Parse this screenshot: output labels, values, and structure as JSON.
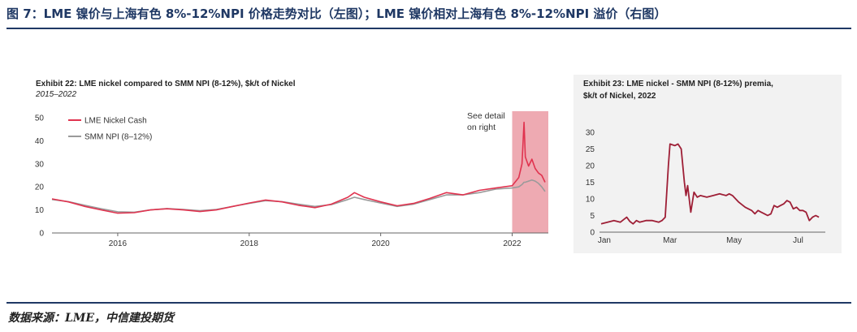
{
  "figure": {
    "title": "图 7：LME 镍价与上海有色 8%-12%NPI 价格走势对比（左图）；LME 镍价相对上海有色 8%-12%NPI 溢价（右图）",
    "source": "数据来源：LME，中信建投期货"
  },
  "colors": {
    "title_blue": "#1f3864",
    "lme_red": "#e0334f",
    "npi_gray": "#9a9a9a",
    "highlight": "#eeaab2",
    "premium_line": "#9e1f36",
    "panel_bg": "#f2f2f2"
  },
  "chart_data": [
    {
      "type": "line",
      "title": "Exhibit 22: LME nickel compared to SMM NPI (8-12%), $k/t of Nickel",
      "subtitle": "2015–2022",
      "xlabel": "",
      "ylabel": "",
      "xlim": [
        2015.0,
        2022.55
      ],
      "ylim": [
        0,
        50
      ],
      "x_ticks": [
        2016,
        2018,
        2020,
        2022
      ],
      "x_tick_labels": [
        "2016",
        "2018",
        "2020",
        "2022"
      ],
      "y_ticks": [
        0,
        10,
        20,
        30,
        40,
        50
      ],
      "y_tick_labels": [
        "0",
        "10",
        "20",
        "30",
        "40",
        "50"
      ],
      "legend": [
        "LME Nickel Cash",
        "SMM NPI (8–12%)"
      ],
      "legend_position": "top-left",
      "annotation": {
        "lines": [
          "See detail",
          "on right"
        ],
        "highlight_start": 2022.0,
        "highlight_end": 2022.55
      },
      "x": [
        2015.0,
        2015.25,
        2015.5,
        2015.75,
        2016.0,
        2016.25,
        2016.5,
        2016.75,
        2017.0,
        2017.25,
        2017.5,
        2017.75,
        2018.0,
        2018.25,
        2018.5,
        2018.75,
        2019.0,
        2019.25,
        2019.5,
        2019.6,
        2019.75,
        2020.0,
        2020.25,
        2020.5,
        2020.75,
        2021.0,
        2021.25,
        2021.5,
        2021.75,
        2022.0,
        2022.1,
        2022.15,
        2022.18,
        2022.2,
        2022.25,
        2022.3,
        2022.35,
        2022.4,
        2022.45,
        2022.5
      ],
      "series": [
        {
          "name": "LME Nickel Cash",
          "values": [
            14.8,
            13.5,
            11.5,
            10.0,
            8.6,
            8.8,
            10.0,
            10.5,
            10.0,
            9.3,
            10.0,
            11.5,
            13.0,
            14.3,
            13.5,
            12.0,
            11.0,
            12.5,
            15.5,
            17.5,
            15.5,
            13.5,
            11.8,
            12.8,
            15.0,
            17.5,
            16.5,
            18.5,
            19.5,
            20.5,
            24.0,
            30.0,
            48.0,
            33.0,
            29.0,
            32.0,
            28.0,
            26.0,
            25.0,
            22.0
          ]
        },
        {
          "name": "SMM NPI (8–12%)",
          "values": [
            14.5,
            13.6,
            12.0,
            10.5,
            9.2,
            9.0,
            10.0,
            10.6,
            10.2,
            9.7,
            10.2,
            11.5,
            12.8,
            14.0,
            13.6,
            12.5,
            11.5,
            12.3,
            14.5,
            15.5,
            14.5,
            13.0,
            11.5,
            12.5,
            14.5,
            16.5,
            16.5,
            17.5,
            19.0,
            19.5,
            20.0,
            21.0,
            22.0,
            22.0,
            22.5,
            23.0,
            22.5,
            21.5,
            20.0,
            18.0
          ]
        }
      ]
    },
    {
      "type": "line",
      "title": "Exhibit 23: LME nickel - SMM NPI (8-12%) premia,",
      "subtitle": "$k/t of Nickel, 2022",
      "xlabel": "",
      "ylabel": "",
      "xlim": [
        0,
        7.0
      ],
      "ylim": [
        0,
        30
      ],
      "x_ticks": [
        0.1,
        2.15,
        4.15,
        6.15
      ],
      "x_tick_labels": [
        "Jan",
        "Mar",
        "May",
        "Jul"
      ],
      "y_ticks": [
        0,
        5,
        10,
        15,
        20,
        25,
        30
      ],
      "y_tick_labels": [
        "0",
        "5",
        "10",
        "15",
        "20",
        "25",
        "30"
      ],
      "x": [
        0.0,
        0.2,
        0.4,
        0.6,
        0.8,
        0.9,
        1.0,
        1.1,
        1.2,
        1.4,
        1.6,
        1.8,
        1.9,
        2.0,
        2.05,
        2.1,
        2.15,
        2.3,
        2.4,
        2.5,
        2.6,
        2.65,
        2.7,
        2.8,
        2.9,
        3.0,
        3.1,
        3.3,
        3.5,
        3.7,
        3.9,
        4.0,
        4.1,
        4.2,
        4.3,
        4.5,
        4.7,
        4.8,
        4.9,
        5.0,
        5.1,
        5.2,
        5.3,
        5.4,
        5.5,
        5.6,
        5.7,
        5.8,
        5.9,
        6.0,
        6.1,
        6.2,
        6.3,
        6.4,
        6.5,
        6.6,
        6.7,
        6.8
      ],
      "series": [
        {
          "name": "LME - SMM NPI premia",
          "values": [
            2.5,
            3.0,
            3.5,
            3.0,
            4.5,
            3.2,
            2.5,
            3.5,
            3.0,
            3.5,
            3.5,
            3.0,
            3.5,
            4.5,
            12.0,
            20.0,
            26.5,
            26.0,
            26.5,
            25.0,
            15.0,
            11.0,
            14.0,
            6.0,
            12.0,
            10.5,
            11.0,
            10.5,
            11.0,
            11.5,
            11.0,
            11.5,
            11.0,
            10.0,
            9.0,
            7.5,
            6.5,
            5.5,
            6.5,
            6.0,
            5.5,
            5.0,
            5.5,
            8.0,
            7.5,
            8.0,
            8.5,
            9.5,
            9.0,
            7.0,
            7.5,
            6.5,
            6.5,
            6.0,
            3.5,
            4.5,
            5.0,
            4.5
          ]
        }
      ]
    }
  ]
}
